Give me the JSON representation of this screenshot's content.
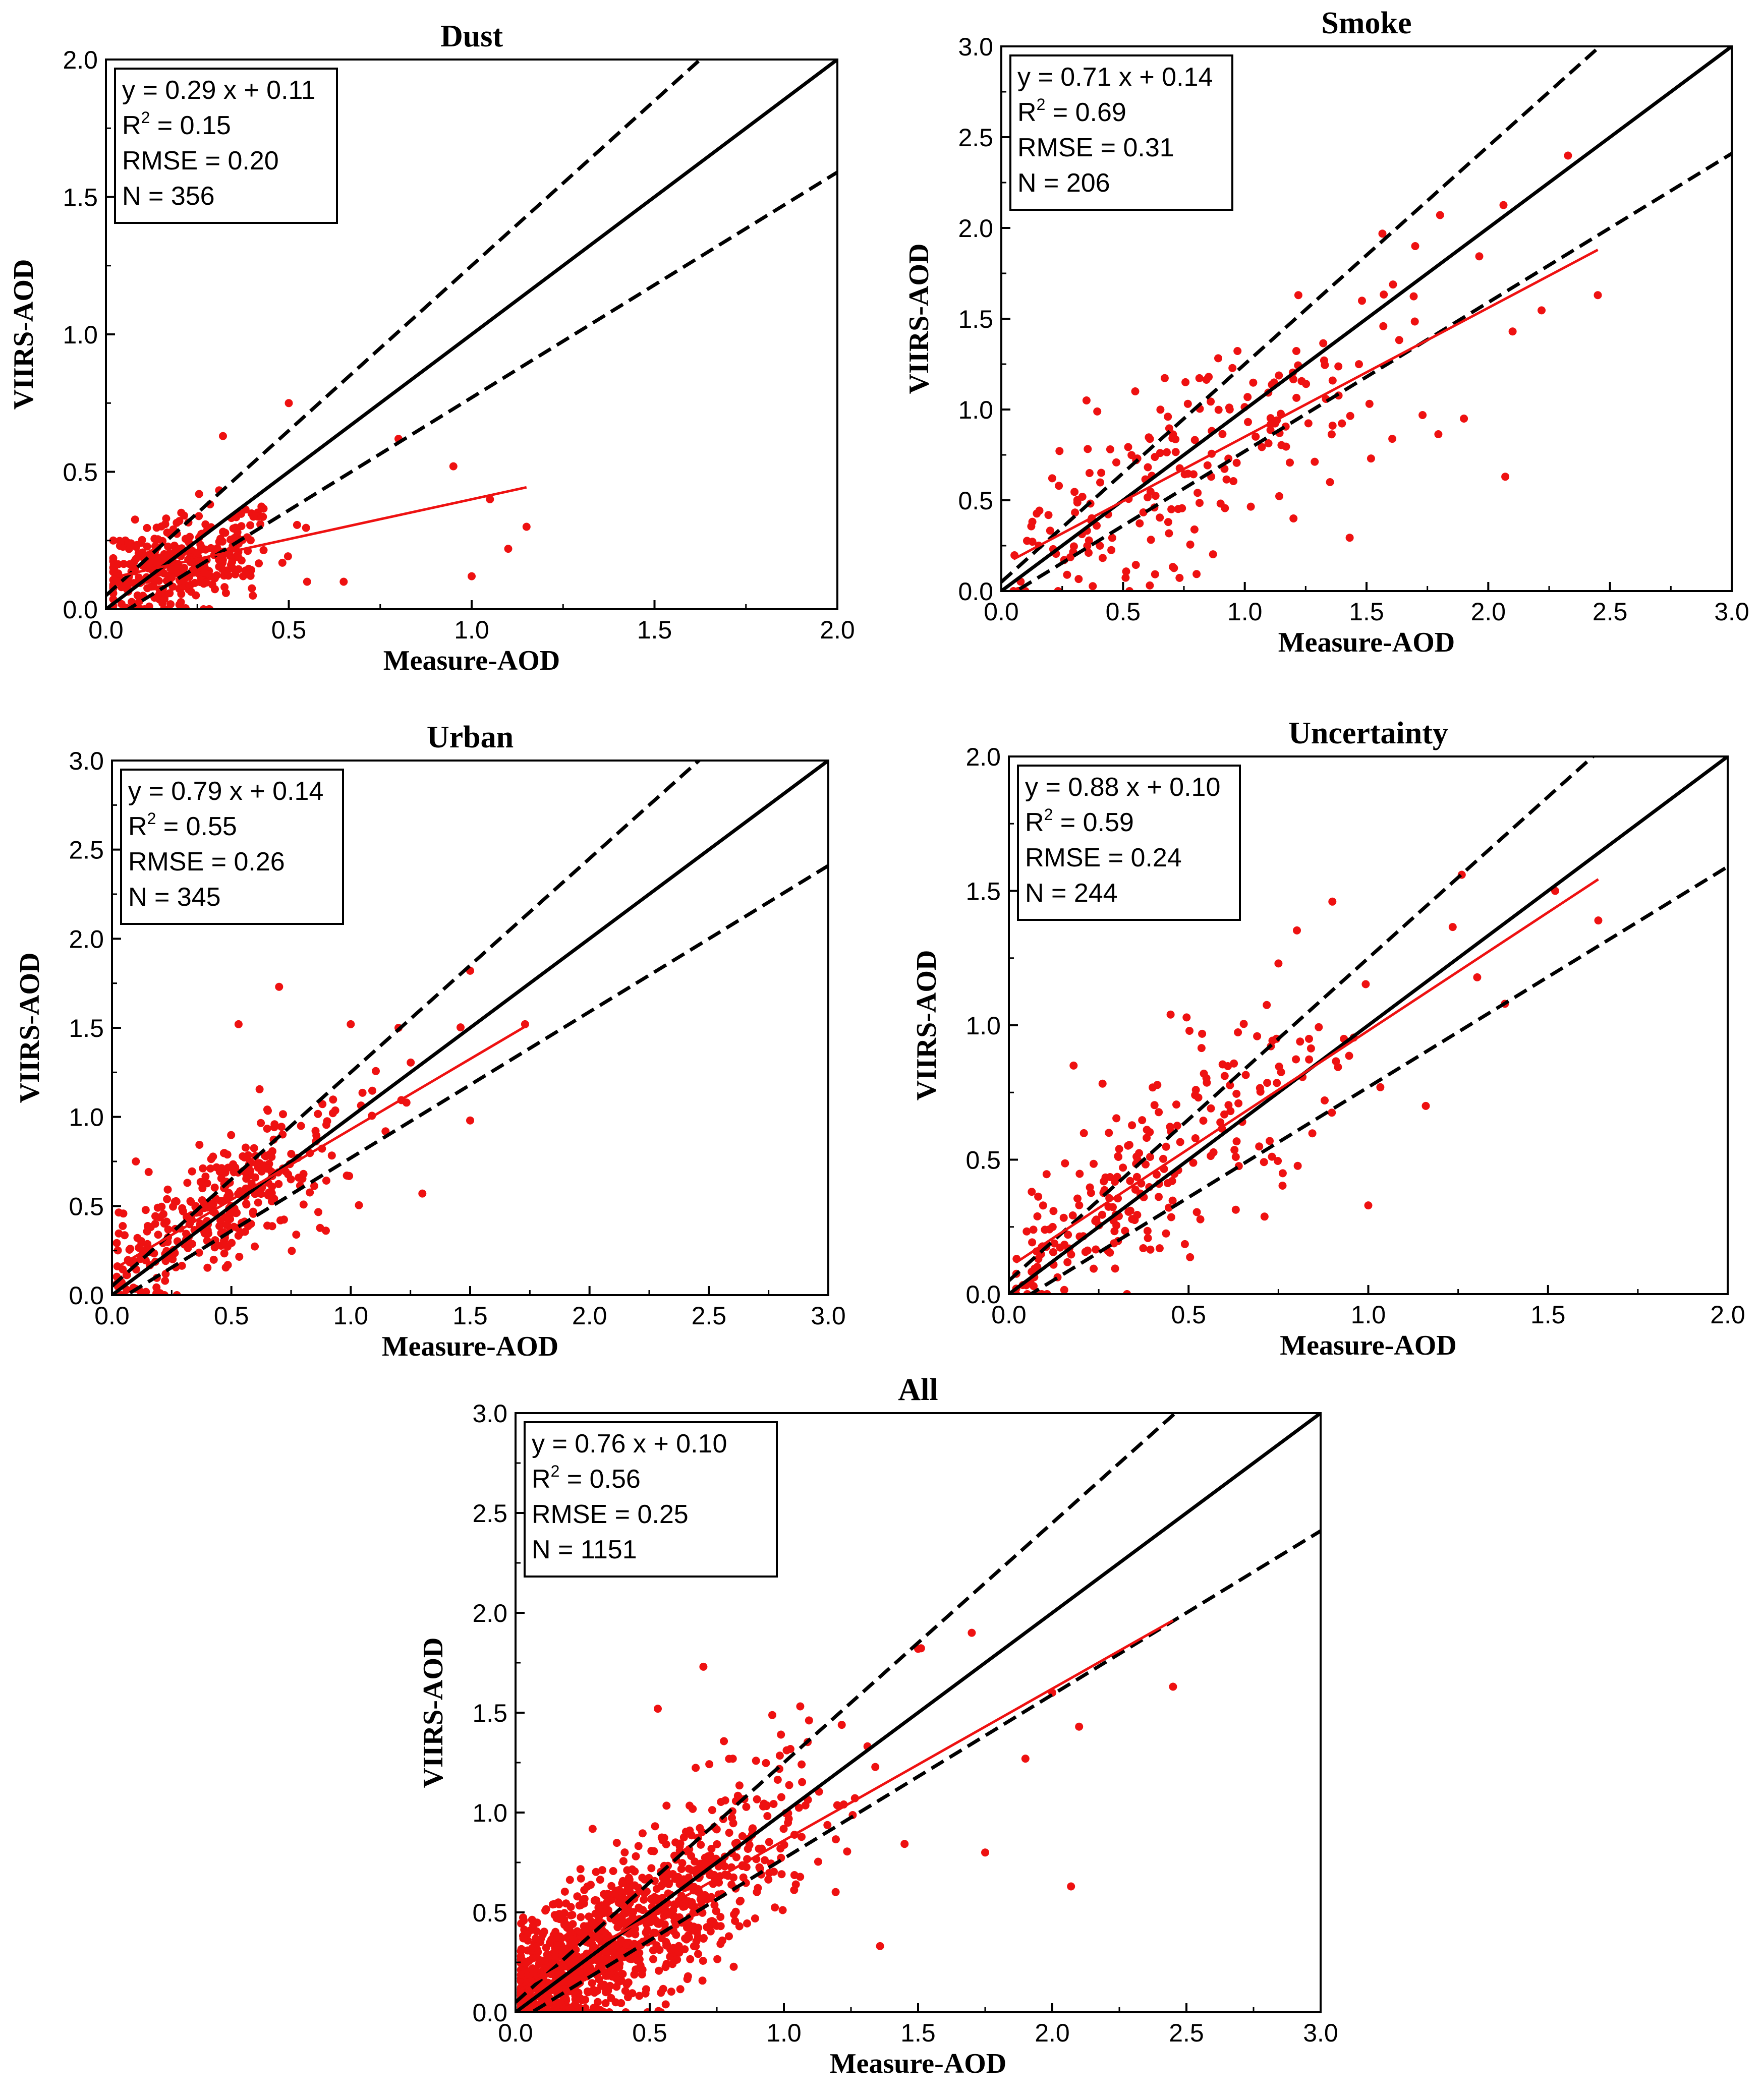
{
  "figure": {
    "colors": {
      "points": "#ee1111",
      "fit_line": "#ee1111",
      "one_to_one": "#000000",
      "envelope": "#000000",
      "axes": "#000000"
    }
  },
  "chart_data": [
    {
      "id": "dust",
      "type": "scatter",
      "title": "Dust",
      "xlabel": "Measure-AOD",
      "ylabel": "VIIRS-AOD",
      "xlim": [
        0,
        2.0
      ],
      "ylim": [
        0,
        2.0
      ],
      "xticks": [
        0.0,
        0.5,
        1.0,
        1.5,
        2.0
      ],
      "yticks": [
        0.0,
        0.5,
        1.0,
        1.5,
        2.0
      ],
      "xtick_labels": [
        "0.0",
        "0.5",
        "1.0",
        "1.5",
        "2.0"
      ],
      "ytick_labels": [
        "0.0",
        "0.5",
        "1.0",
        "1.5",
        "2.0"
      ],
      "fit": {
        "slope": 0.29,
        "intercept": 0.11,
        "x_range": [
          0.02,
          1.15
        ]
      },
      "stats": {
        "equation": "y = 0.29 x + 0.11",
        "r2_label": "R",
        "r2_sup": "2",
        "r2_value": " = 0.15",
        "rmse": "RMSE = 0.20",
        "n": "N = 356"
      },
      "n_points": 356,
      "points": {
        "center_x": 0.2,
        "center_y": 0.17,
        "x_spread": 0.12,
        "y_spread": 0.12,
        "x_min": 0.02,
        "x_max": 1.15,
        "outliers": [
          [
            0.5,
            0.75
          ],
          [
            0.95,
            0.52
          ],
          [
            1.05,
            0.4
          ],
          [
            1.15,
            0.3
          ],
          [
            1.0,
            0.12
          ],
          [
            0.8,
            0.62
          ],
          [
            0.32,
            0.63
          ],
          [
            0.55,
            0.1
          ],
          [
            0.65,
            0.1
          ],
          [
            1.1,
            0.22
          ]
        ]
      }
    },
    {
      "id": "smoke",
      "type": "scatter",
      "title": "Smoke",
      "xlabel": "Measure-AOD",
      "ylabel": "VIIRS-AOD",
      "xlim": [
        0,
        3.0
      ],
      "ylim": [
        0,
        3.0
      ],
      "xticks": [
        0.0,
        0.5,
        1.0,
        1.5,
        2.0,
        2.5,
        3.0
      ],
      "yticks": [
        0.0,
        0.5,
        1.0,
        1.5,
        2.0,
        2.5,
        3.0
      ],
      "xtick_labels": [
        "0.0",
        "0.5",
        "1.0",
        "1.5",
        "2.0",
        "2.5",
        "3.0"
      ],
      "ytick_labels": [
        "0.0",
        "0.5",
        "1.0",
        "1.5",
        "2.0",
        "2.5",
        "3.0"
      ],
      "fit": {
        "slope": 0.71,
        "intercept": 0.14,
        "x_range": [
          0.05,
          2.45
        ]
      },
      "stats": {
        "equation": "y = 0.71 x + 0.14",
        "r2_label": "R",
        "r2_sup": "2",
        "r2_value": " = 0.69",
        "rmse": "RMSE = 0.31",
        "n": "N = 206"
      },
      "n_points": 206,
      "points": {
        "center_x": 0.8,
        "center_y": 0.7,
        "x_spread": 0.5,
        "y_spread": 0.3,
        "x_min": 0.05,
        "x_max": 2.45,
        "outliers": [
          [
            2.45,
            1.63
          ],
          [
            2.1,
            1.43
          ],
          [
            2.07,
            0.63
          ],
          [
            1.7,
            1.9
          ],
          [
            1.22,
            1.63
          ],
          [
            0.35,
            1.05
          ],
          [
            0.55,
            1.1
          ],
          [
            1.9,
            0.95
          ],
          [
            1.35,
            0.6
          ],
          [
            1.2,
            0.4
          ]
        ]
      }
    },
    {
      "id": "urban",
      "type": "scatter",
      "title": "Urban",
      "xlabel": "Measure-AOD",
      "ylabel": "VIIRS-AOD",
      "xlim": [
        0,
        3.0
      ],
      "ylim": [
        0,
        3.0
      ],
      "xticks": [
        0.0,
        0.5,
        1.0,
        1.5,
        2.0,
        2.5,
        3.0
      ],
      "yticks": [
        0.0,
        0.5,
        1.0,
        1.5,
        2.0,
        2.5,
        3.0
      ],
      "xtick_labels": [
        "0.0",
        "0.5",
        "1.0",
        "1.5",
        "2.0",
        "2.5",
        "3.0"
      ],
      "ytick_labels": [
        "0.0",
        "0.5",
        "1.0",
        "1.5",
        "2.0",
        "2.5",
        "3.0"
      ],
      "fit": {
        "slope": 0.79,
        "intercept": 0.14,
        "x_range": [
          0.02,
          1.73
        ]
      },
      "stats": {
        "equation": "y = 0.79 x + 0.14",
        "r2_label": "R",
        "r2_sup": "2",
        "r2_value": " = 0.55",
        "rmse": "RMSE = 0.26",
        "n": "N = 345"
      },
      "n_points": 345,
      "points": {
        "center_x": 0.45,
        "center_y": 0.45,
        "x_spread": 0.3,
        "y_spread": 0.22,
        "x_min": 0.02,
        "x_max": 1.73,
        "outliers": [
          [
            0.7,
            1.73
          ],
          [
            0.53,
            1.52
          ],
          [
            1.5,
            1.82
          ],
          [
            1.73,
            1.52
          ],
          [
            1.5,
            0.98
          ],
          [
            1.3,
            0.57
          ],
          [
            0.1,
            0.75
          ],
          [
            1.0,
            1.52
          ],
          [
            0.22,
            0.0
          ],
          [
            1.2,
            1.5
          ]
        ]
      }
    },
    {
      "id": "uncertainty",
      "type": "scatter",
      "title": "Uncertainty",
      "xlabel": "Measure-AOD",
      "ylabel": "VIIRS-AOD",
      "xlim": [
        0,
        2.0
      ],
      "ylim": [
        0,
        2.0
      ],
      "xticks": [
        0.0,
        0.5,
        1.0,
        1.5,
        2.0
      ],
      "yticks": [
        0.0,
        0.5,
        1.0,
        1.5,
        2.0
      ],
      "xtick_labels": [
        "0.0",
        "0.5",
        "1.0",
        "1.5",
        "2.0"
      ],
      "ytick_labels": [
        "0.0",
        "0.5",
        "1.0",
        "1.5",
        "2.0"
      ],
      "fit": {
        "slope": 0.88,
        "intercept": 0.1,
        "x_range": [
          0.02,
          1.64
        ]
      },
      "stats": {
        "equation": "y = 0.88 x + 0.10",
        "r2_label": "R",
        "r2_sup": "2",
        "r2_value": " = 0.59",
        "rmse": "RMSE = 0.24",
        "n": "N = 244"
      },
      "n_points": 244,
      "points": {
        "center_x": 0.4,
        "center_y": 0.45,
        "x_spread": 0.3,
        "y_spread": 0.22,
        "x_min": 0.02,
        "x_max": 1.64,
        "outliers": [
          [
            1.26,
            1.56
          ],
          [
            1.52,
            1.5
          ],
          [
            1.64,
            1.39
          ],
          [
            0.9,
            1.46
          ],
          [
            1.0,
            0.33
          ],
          [
            1.16,
            0.7
          ],
          [
            0.18,
            0.85
          ],
          [
            1.38,
            1.08
          ],
          [
            0.75,
            1.23
          ],
          [
            0.45,
            1.04
          ]
        ]
      }
    },
    {
      "id": "all",
      "type": "scatter",
      "title": "All",
      "xlabel": "Measure-AOD",
      "ylabel": "VIIRS-AOD",
      "xlim": [
        0,
        3.0
      ],
      "ylim": [
        0,
        3.0
      ],
      "xticks": [
        0.0,
        0.5,
        1.0,
        1.5,
        2.0,
        2.5,
        3.0
      ],
      "yticks": [
        0.0,
        0.5,
        1.0,
        1.5,
        2.0,
        2.5,
        3.0
      ],
      "xtick_labels": [
        "0.0",
        "0.5",
        "1.0",
        "1.5",
        "2.0",
        "2.5",
        "3.0"
      ],
      "ytick_labels": [
        "0.0",
        "0.5",
        "1.0",
        "1.5",
        "2.0",
        "2.5",
        "3.0"
      ],
      "fit": {
        "slope": 0.76,
        "intercept": 0.1,
        "x_range": [
          0.02,
          2.45
        ]
      },
      "stats": {
        "equation": "y = 0.76 x + 0.10",
        "r2_label": "R",
        "r2_sup": "2",
        "r2_value": " = 0.56",
        "rmse": "RMSE = 0.25",
        "n": "N = 1151"
      },
      "n_points": 1151,
      "points": {
        "center_x": 0.35,
        "center_y": 0.35,
        "x_spread": 0.35,
        "y_spread": 0.25,
        "x_min": 0.02,
        "x_max": 2.45,
        "outliers": [
          [
            0.7,
            1.73
          ],
          [
            2.45,
            1.63
          ],
          [
            2.07,
            0.63
          ],
          [
            1.5,
            1.82
          ],
          [
            1.7,
            1.9
          ],
          [
            1.9,
            1.27
          ],
          [
            1.75,
            0.8
          ],
          [
            2.1,
            1.43
          ],
          [
            2.0,
            1.6
          ],
          [
            0.53,
            1.52
          ]
        ]
      }
    }
  ]
}
